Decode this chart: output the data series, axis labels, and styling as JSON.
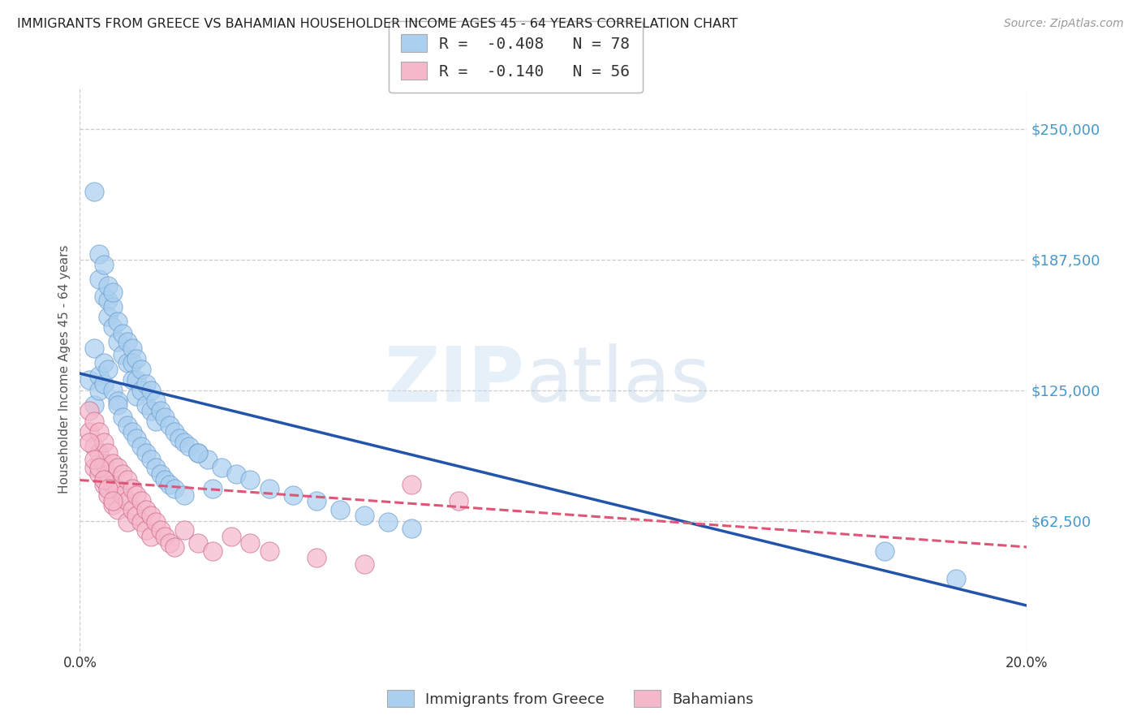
{
  "title": "IMMIGRANTS FROM GREECE VS BAHAMIAN HOUSEHOLDER INCOME AGES 45 - 64 YEARS CORRELATION CHART",
  "source": "Source: ZipAtlas.com",
  "ylabel": "Householder Income Ages 45 - 64 years",
  "xlim": [
    0.0,
    0.2
  ],
  "ylim": [
    0,
    270000
  ],
  "yticks": [
    62500,
    125000,
    187500,
    250000
  ],
  "ytick_labels": [
    "$62,500",
    "$125,000",
    "$187,500",
    "$250,000"
  ],
  "xticks": [
    0.0,
    0.05,
    0.1,
    0.15,
    0.2
  ],
  "xtick_labels": [
    "0.0%",
    "",
    "",
    "",
    "20.0%"
  ],
  "legend_entries": [
    {
      "label": "R =  -0.408   N = 78",
      "color": "#aacfef"
    },
    {
      "label": "R =  -0.140   N = 56",
      "color": "#f5b8cb"
    }
  ],
  "legend_bottom": [
    "Immigrants from Greece",
    "Bahamians"
  ],
  "legend_bottom_colors": [
    "#aacfef",
    "#f5b8cb"
  ],
  "blue_scatter_x": [
    0.003,
    0.004,
    0.004,
    0.005,
    0.005,
    0.006,
    0.006,
    0.006,
    0.007,
    0.007,
    0.007,
    0.008,
    0.008,
    0.009,
    0.009,
    0.01,
    0.01,
    0.011,
    0.011,
    0.011,
    0.012,
    0.012,
    0.012,
    0.013,
    0.013,
    0.014,
    0.014,
    0.015,
    0.015,
    0.016,
    0.016,
    0.017,
    0.018,
    0.019,
    0.02,
    0.021,
    0.022,
    0.023,
    0.025,
    0.027,
    0.03,
    0.033,
    0.036,
    0.04,
    0.045,
    0.05,
    0.055,
    0.06,
    0.065,
    0.07,
    0.002,
    0.003,
    0.003,
    0.004,
    0.004,
    0.005,
    0.005,
    0.006,
    0.007,
    0.008,
    0.008,
    0.009,
    0.01,
    0.011,
    0.012,
    0.013,
    0.014,
    0.015,
    0.016,
    0.017,
    0.018,
    0.019,
    0.02,
    0.022,
    0.025,
    0.028,
    0.17,
    0.185
  ],
  "blue_scatter_y": [
    220000,
    190000,
    178000,
    185000,
    170000,
    168000,
    175000,
    160000,
    165000,
    155000,
    172000,
    158000,
    148000,
    152000,
    142000,
    148000,
    138000,
    145000,
    138000,
    130000,
    140000,
    130000,
    122000,
    135000,
    125000,
    128000,
    118000,
    125000,
    115000,
    120000,
    110000,
    115000,
    112000,
    108000,
    105000,
    102000,
    100000,
    98000,
    95000,
    92000,
    88000,
    85000,
    82000,
    78000,
    75000,
    72000,
    68000,
    65000,
    62000,
    59000,
    130000,
    145000,
    118000,
    132000,
    125000,
    138000,
    128000,
    135000,
    125000,
    120000,
    118000,
    112000,
    108000,
    105000,
    102000,
    98000,
    95000,
    92000,
    88000,
    85000,
    82000,
    80000,
    78000,
    75000,
    95000,
    78000,
    48000,
    35000
  ],
  "pink_scatter_x": [
    0.002,
    0.002,
    0.003,
    0.003,
    0.003,
    0.004,
    0.004,
    0.004,
    0.005,
    0.005,
    0.005,
    0.006,
    0.006,
    0.006,
    0.007,
    0.007,
    0.007,
    0.008,
    0.008,
    0.008,
    0.009,
    0.009,
    0.01,
    0.01,
    0.01,
    0.011,
    0.011,
    0.012,
    0.012,
    0.013,
    0.013,
    0.014,
    0.014,
    0.015,
    0.015,
    0.016,
    0.017,
    0.018,
    0.019,
    0.02,
    0.022,
    0.025,
    0.028,
    0.032,
    0.036,
    0.04,
    0.05,
    0.06,
    0.07,
    0.08,
    0.002,
    0.003,
    0.004,
    0.005,
    0.006,
    0.007
  ],
  "pink_scatter_y": [
    115000,
    105000,
    110000,
    98000,
    88000,
    105000,
    95000,
    85000,
    100000,
    90000,
    80000,
    95000,
    85000,
    75000,
    90000,
    80000,
    70000,
    88000,
    78000,
    68000,
    85000,
    75000,
    82000,
    72000,
    62000,
    78000,
    68000,
    75000,
    65000,
    72000,
    62000,
    68000,
    58000,
    65000,
    55000,
    62000,
    58000,
    55000,
    52000,
    50000,
    58000,
    52000,
    48000,
    55000,
    52000,
    48000,
    45000,
    42000,
    80000,
    72000,
    100000,
    92000,
    88000,
    82000,
    78000,
    72000
  ],
  "blue_line_x": [
    0.0,
    0.2
  ],
  "blue_line_y": [
    133000,
    22000
  ],
  "pink_line_x": [
    0.0,
    0.2
  ],
  "pink_line_y": [
    82000,
    50000
  ],
  "watermark_zip": "ZIP",
  "watermark_atlas": "atlas",
  "background_color": "#ffffff",
  "grid_color": "#cccccc",
  "scatter_blue": "#aacfef",
  "scatter_blue_edge": "#6699cc",
  "scatter_pink": "#f5b8cb",
  "scatter_pink_edge": "#cc6688",
  "line_blue_color": "#2255aa",
  "line_pink_color": "#dd5577"
}
